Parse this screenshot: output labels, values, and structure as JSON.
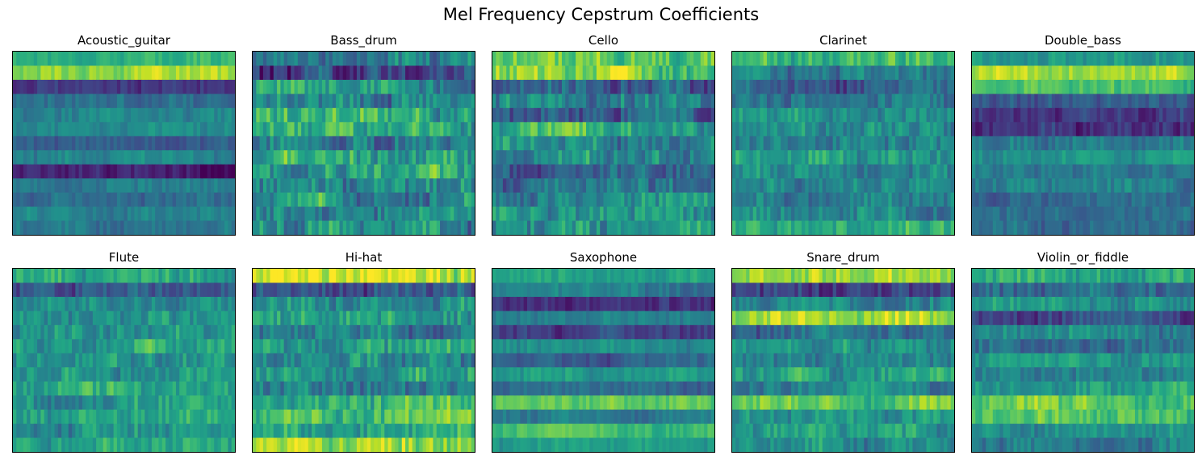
{
  "title": "Mel Frequency Cepstrum Coefficients",
  "chart_data": [
    {
      "type": "heatmap",
      "title": "Acoustic_guitar",
      "rows": 13,
      "cols": 64,
      "colormap": "viridis",
      "row_levels": [
        0.65,
        0.85,
        0.15,
        0.35,
        0.45,
        0.5,
        0.3,
        0.45,
        0.08,
        0.4,
        0.35,
        0.45,
        0.4
      ],
      "variation": 0.12,
      "grid": false,
      "xticks": [],
      "yticks": []
    },
    {
      "type": "heatmap",
      "title": "Bass_drum",
      "rows": 13,
      "cols": 64,
      "colormap": "viridis",
      "row_levels": [
        0.45,
        0.2,
        0.55,
        0.45,
        0.6,
        0.65,
        0.45,
        0.55,
        0.55,
        0.5,
        0.5,
        0.45,
        0.5
      ],
      "variation": 0.3,
      "grid": false,
      "xticks": [],
      "yticks": []
    },
    {
      "type": "heatmap",
      "title": "Cello",
      "rows": 13,
      "cols": 64,
      "colormap": "viridis",
      "row_levels": [
        0.75,
        0.8,
        0.25,
        0.4,
        0.3,
        0.6,
        0.5,
        0.45,
        0.35,
        0.3,
        0.5,
        0.55,
        0.5
      ],
      "variation": 0.25,
      "grid": false,
      "xticks": [],
      "yticks": []
    },
    {
      "type": "heatmap",
      "title": "Clarinet",
      "rows": 13,
      "cols": 64,
      "colormap": "viridis",
      "row_levels": [
        0.65,
        0.4,
        0.35,
        0.45,
        0.55,
        0.5,
        0.45,
        0.55,
        0.45,
        0.5,
        0.4,
        0.45,
        0.65
      ],
      "variation": 0.2,
      "grid": false,
      "xticks": [],
      "yticks": []
    },
    {
      "type": "heatmap",
      "title": "Double_bass",
      "rows": 13,
      "cols": 64,
      "colormap": "viridis",
      "row_levels": [
        0.55,
        0.9,
        0.7,
        0.3,
        0.15,
        0.12,
        0.4,
        0.5,
        0.45,
        0.4,
        0.35,
        0.35,
        0.35
      ],
      "variation": 0.15,
      "grid": false,
      "xticks": [],
      "yticks": []
    },
    {
      "type": "heatmap",
      "title": "Flute",
      "rows": 13,
      "cols": 64,
      "colormap": "viridis",
      "row_levels": [
        0.6,
        0.25,
        0.5,
        0.55,
        0.5,
        0.6,
        0.5,
        0.55,
        0.6,
        0.5,
        0.55,
        0.5,
        0.55
      ],
      "variation": 0.2,
      "grid": false,
      "xticks": [],
      "yticks": []
    },
    {
      "type": "heatmap",
      "title": "Hi-hat",
      "rows": 13,
      "cols": 64,
      "colormap": "viridis",
      "row_levels": [
        0.95,
        0.25,
        0.45,
        0.55,
        0.4,
        0.55,
        0.45,
        0.55,
        0.45,
        0.6,
        0.7,
        0.6,
        0.85
      ],
      "variation": 0.25,
      "grid": false,
      "xticks": [],
      "yticks": []
    },
    {
      "type": "heatmap",
      "title": "Saxophone",
      "rows": 13,
      "cols": 64,
      "colormap": "viridis",
      "row_levels": [
        0.55,
        0.4,
        0.15,
        0.45,
        0.2,
        0.5,
        0.3,
        0.55,
        0.35,
        0.75,
        0.4,
        0.7,
        0.55
      ],
      "variation": 0.12,
      "grid": false,
      "xticks": [],
      "yticks": []
    },
    {
      "type": "heatmap",
      "title": "Snare_drum",
      "rows": 13,
      "cols": 64,
      "colormap": "viridis",
      "row_levels": [
        0.85,
        0.2,
        0.45,
        0.85,
        0.35,
        0.55,
        0.45,
        0.55,
        0.45,
        0.7,
        0.5,
        0.55,
        0.5
      ],
      "variation": 0.2,
      "grid": false,
      "xticks": [],
      "yticks": []
    },
    {
      "type": "heatmap",
      "title": "Violin_or_fiddle",
      "rows": 13,
      "cols": 64,
      "colormap": "viridis",
      "row_levels": [
        0.6,
        0.35,
        0.55,
        0.2,
        0.45,
        0.35,
        0.55,
        0.45,
        0.55,
        0.75,
        0.7,
        0.5,
        0.45
      ],
      "variation": 0.18,
      "grid": false,
      "xticks": [],
      "yticks": []
    }
  ]
}
